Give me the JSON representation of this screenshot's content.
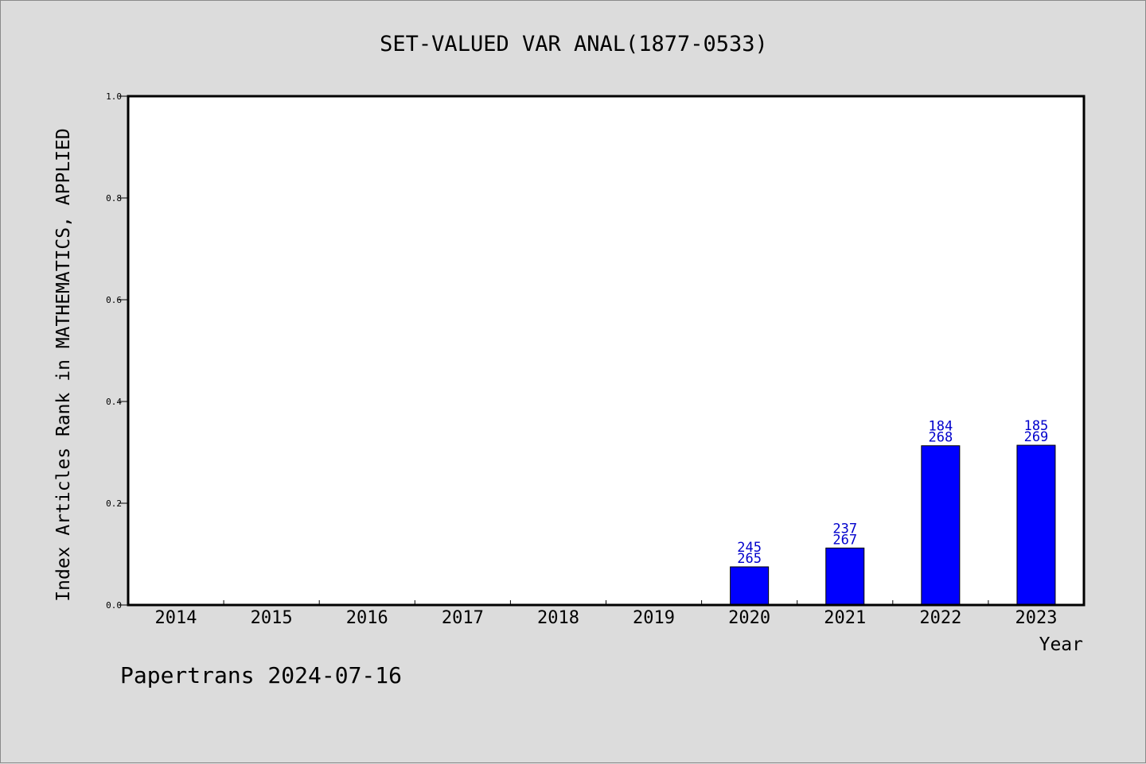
{
  "footer": {
    "credit": "Papertrans 2024-07-16"
  },
  "chart_data": {
    "type": "bar",
    "title": "SET-VALUED VAR ANAL(1877-0533)",
    "xlabel": "Year",
    "ylabel": "Index Articles Rank in MATHEMATICS, APPLIED",
    "ylim": [
      0,
      1.0
    ],
    "yticks": [
      "0.0",
      "0.2",
      "0.4",
      "0.6",
      "0.8",
      "1.0"
    ],
    "grid": false,
    "categories": [
      "2014",
      "2015",
      "2016",
      "2017",
      "2018",
      "2019",
      "2020",
      "2021",
      "2022",
      "2023"
    ],
    "values": [
      null,
      null,
      null,
      null,
      null,
      null,
      0.075,
      0.112,
      0.313,
      0.314
    ],
    "labels": [
      null,
      null,
      null,
      null,
      null,
      null,
      [
        "245",
        "265"
      ],
      [
        "237",
        "267"
      ],
      [
        "184",
        "268"
      ],
      [
        "185",
        "269"
      ]
    ],
    "bar_color": "#0000ff",
    "label_color": "#0000cc"
  }
}
